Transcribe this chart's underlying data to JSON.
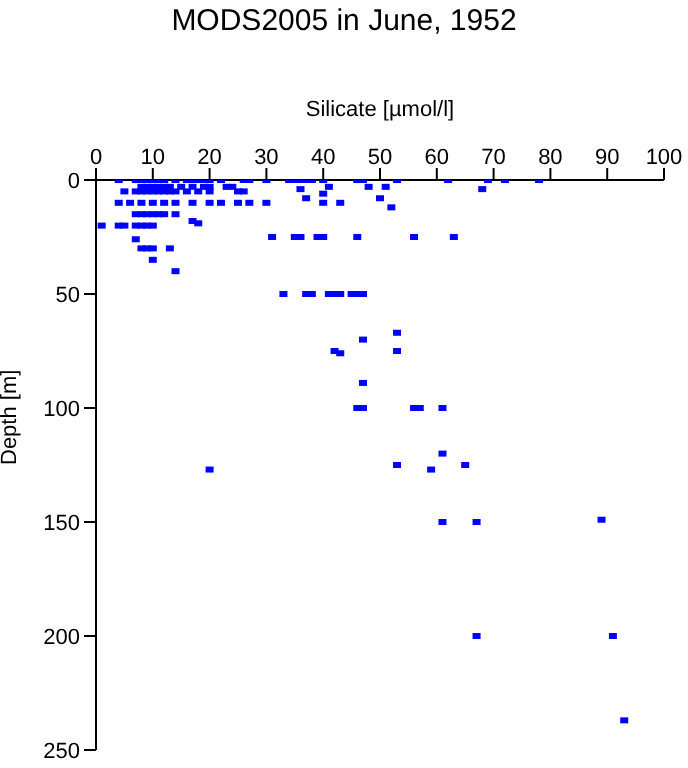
{
  "chart_data": {
    "type": "scatter",
    "title": "MODS2005 in June, 1952",
    "xlabel": "Silicate [µmol/l]",
    "ylabel": "Depth [m]",
    "x": [
      4,
      7,
      8,
      9,
      10,
      11,
      12,
      14,
      16,
      17,
      18,
      19,
      20,
      22,
      26,
      27,
      30,
      34,
      35,
      37,
      40,
      36,
      38,
      46,
      47,
      53,
      62,
      69,
      72,
      78,
      8,
      9,
      10,
      11,
      12,
      13,
      15,
      17,
      19,
      20,
      23,
      24,
      48,
      51,
      41,
      5,
      7,
      8,
      9,
      10,
      11,
      12,
      13,
      14,
      16,
      18,
      20,
      25,
      26,
      36,
      68,
      37,
      50,
      40,
      4,
      6,
      8,
      10,
      12,
      14,
      17,
      20,
      22,
      25,
      27,
      30,
      43,
      40,
      52,
      7,
      8,
      9,
      10,
      11,
      12,
      14,
      1,
      4,
      5,
      7,
      8,
      9,
      10,
      17,
      18,
      7,
      31,
      35,
      39,
      36,
      40,
      46,
      56,
      63,
      8,
      9,
      10,
      13,
      10,
      14,
      33,
      37,
      41,
      42,
      45,
      38,
      43,
      46,
      47,
      20,
      42,
      43,
      47,
      53,
      53,
      47,
      46,
      47,
      56,
      57,
      61,
      61,
      53,
      59,
      65,
      61,
      67,
      89,
      67,
      91,
      93
    ],
    "values": [
      0,
      0,
      0,
      0,
      0,
      0,
      0,
      0,
      0,
      0,
      0,
      0,
      0,
      0,
      0,
      0,
      0,
      0,
      0,
      0,
      0,
      0,
      0,
      0,
      0,
      0,
      0,
      0,
      0,
      0,
      3,
      3,
      3,
      3,
      3,
      3,
      3,
      3,
      3,
      3,
      3,
      3,
      3,
      3,
      3,
      5,
      5,
      5,
      5,
      5,
      5,
      5,
      5,
      5,
      5,
      5,
      5,
      5,
      5,
      4,
      4,
      8,
      8,
      6,
      10,
      10,
      10,
      10,
      10,
      10,
      10,
      10,
      10,
      10,
      10,
      10,
      10,
      10,
      12,
      15,
      15,
      15,
      15,
      15,
      15,
      15,
      20,
      20,
      20,
      20,
      20,
      20,
      20,
      18,
      19,
      26,
      25,
      25,
      25,
      25,
      25,
      25,
      25,
      25,
      30,
      30,
      30,
      30,
      35,
      40,
      50,
      50,
      50,
      50,
      50,
      50,
      50,
      50,
      50,
      127,
      75,
      76,
      70,
      67,
      75,
      89,
      100,
      100,
      100,
      100,
      100,
      120,
      125,
      127,
      125,
      150,
      150,
      149,
      200,
      200,
      237
    ],
    "color": "#0000ff",
    "marker": "square",
    "xlim": [
      0,
      100
    ],
    "xticks": [
      0,
      10,
      20,
      30,
      40,
      50,
      60,
      70,
      80,
      90,
      100
    ],
    "ylim": [
      250,
      0
    ],
    "yticks": [
      0,
      50,
      100,
      150,
      200,
      250
    ],
    "grid": false
  }
}
